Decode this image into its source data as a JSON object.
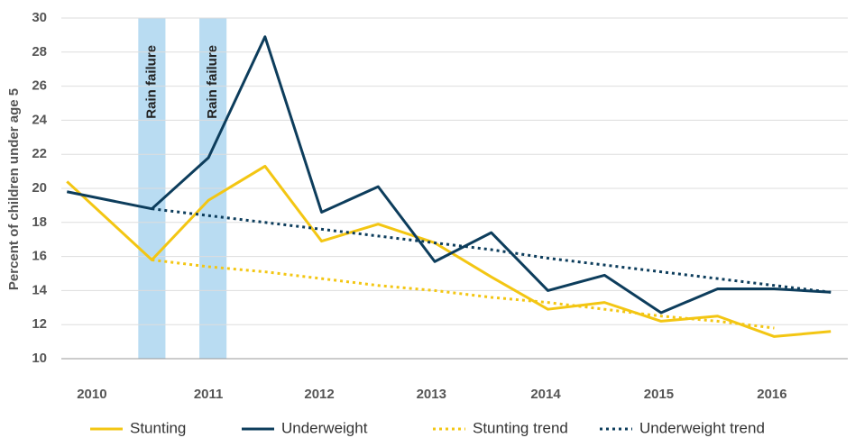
{
  "chart_data": {
    "type": "line",
    "y_label": "Percent of children under age 5",
    "x": [
      2010,
      2010.75,
      2011.25,
      2011.75,
      2012.25,
      2012.75,
      2013.25,
      2013.75,
      2014.25,
      2014.75,
      2015.25,
      2015.75,
      2016.25,
      2016.75
    ],
    "series": [
      {
        "name": "Stunting",
        "color": "#f3c613",
        "dashed": false,
        "values": [
          20.4,
          15.8,
          19.3,
          21.3,
          16.9,
          17.9,
          16.8,
          14.8,
          12.9,
          13.3,
          12.2,
          12.5,
          11.3,
          11.6
        ]
      },
      {
        "name": "Underweight",
        "color": "#0d3d5c",
        "dashed": false,
        "values": [
          19.8,
          18.8,
          21.8,
          28.9,
          18.6,
          20.1,
          15.7,
          17.4,
          14.0,
          14.9,
          12.7,
          14.1,
          14.1,
          13.9
        ]
      },
      {
        "name": "Stunting trend",
        "color": "#f3c613",
        "dashed": true,
        "values": [
          null,
          15.8,
          15.4,
          15.1,
          14.7,
          14.3,
          14.0,
          13.6,
          13.3,
          12.9,
          12.5,
          12.2,
          11.8,
          null
        ]
      },
      {
        "name": "Underweight trend",
        "color": "#0d3d5c",
        "dashed": true,
        "values": [
          null,
          18.8,
          18.4,
          18.0,
          17.6,
          17.2,
          16.8,
          16.4,
          15.9,
          15.5,
          15.1,
          14.7,
          14.3,
          13.9
        ]
      }
    ],
    "annotations": [
      {
        "text": "Rain failure",
        "range": [
          2010.63,
          2010.87
        ],
        "color": "#b9dcf2"
      },
      {
        "text": "Rain failure",
        "range": [
          2011.17,
          2011.41
        ],
        "color": "#b9dcf2"
      }
    ],
    "xlim": [
      2009.95,
      2016.9
    ],
    "xticks": [
      {
        "value": 2010.22,
        "label": "2010"
      },
      {
        "value": 2011.25,
        "label": "2011"
      },
      {
        "value": 2012.23,
        "label": "2012"
      },
      {
        "value": 2013.22,
        "label": "2013"
      },
      {
        "value": 2014.23,
        "label": "2014"
      },
      {
        "value": 2015.23,
        "label": "2015"
      },
      {
        "value": 2016.23,
        "label": "2016"
      }
    ],
    "ylim": [
      10,
      30
    ],
    "yticks": [
      10,
      12,
      14,
      16,
      18,
      20,
      22,
      24,
      26,
      28,
      30
    ],
    "grid": true,
    "legend": "bottom"
  }
}
